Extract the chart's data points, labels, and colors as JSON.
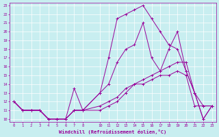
{
  "xlabel": "Windchill (Refroidissement éolien,°C)",
  "bg_color": "#c8eef0",
  "line_color": "#990099",
  "grid_color": "#ffffff",
  "xlim": [
    -0.5,
    23.5
  ],
  "ylim": [
    9.7,
    23.3
  ],
  "xticks": [
    0,
    1,
    2,
    3,
    4,
    5,
    6,
    7,
    8,
    10,
    11,
    12,
    13,
    14,
    15,
    16,
    17,
    18,
    19,
    20,
    21,
    22,
    23
  ],
  "yticks": [
    10,
    11,
    12,
    13,
    14,
    15,
    16,
    17,
    18,
    19,
    20,
    21,
    22,
    23
  ],
  "lines": [
    {
      "x": [
        0,
        1,
        2,
        3,
        4,
        5,
        6,
        7,
        8,
        10,
        11,
        12,
        13,
        14,
        15,
        16,
        17,
        18,
        19,
        20,
        21,
        22,
        23
      ],
      "y": [
        12,
        11,
        11,
        11,
        10,
        10,
        10,
        11,
        11,
        13,
        17,
        21.5,
        22,
        22.5,
        23,
        21.5,
        20,
        18.5,
        18,
        15.5,
        13,
        10,
        11.5
      ]
    },
    {
      "x": [
        0,
        1,
        2,
        3,
        4,
        5,
        6,
        7,
        8,
        10,
        11,
        12,
        13,
        14,
        15,
        16,
        17,
        18,
        19,
        20,
        21,
        22,
        23
      ],
      "y": [
        12,
        11,
        11,
        11,
        10,
        10,
        10,
        11,
        11,
        13,
        14,
        16.5,
        18,
        18.5,
        21,
        17,
        15.5,
        18,
        20,
        15.5,
        13,
        10,
        11.5
      ]
    },
    {
      "x": [
        0,
        1,
        2,
        3,
        4,
        5,
        6,
        7,
        8,
        10,
        11,
        12,
        13,
        14,
        15,
        16,
        17,
        18,
        19,
        20,
        21,
        22,
        23
      ],
      "y": [
        12,
        11,
        11,
        11,
        10,
        10,
        10,
        13.5,
        11,
        11.5,
        12,
        12.5,
        13.5,
        14,
        14.5,
        15,
        15.5,
        16,
        16.5,
        16.5,
        13,
        11.5,
        11.5
      ]
    },
    {
      "x": [
        0,
        1,
        2,
        3,
        4,
        5,
        6,
        7,
        8,
        10,
        11,
        12,
        13,
        14,
        15,
        16,
        17,
        18,
        19,
        20,
        21,
        22,
        23
      ],
      "y": [
        12,
        11,
        11,
        11,
        10,
        10,
        10,
        11,
        11,
        11,
        11.5,
        12,
        13,
        14,
        14,
        14.5,
        15,
        15,
        15.5,
        15,
        11.5,
        11.5,
        11.5
      ]
    }
  ]
}
